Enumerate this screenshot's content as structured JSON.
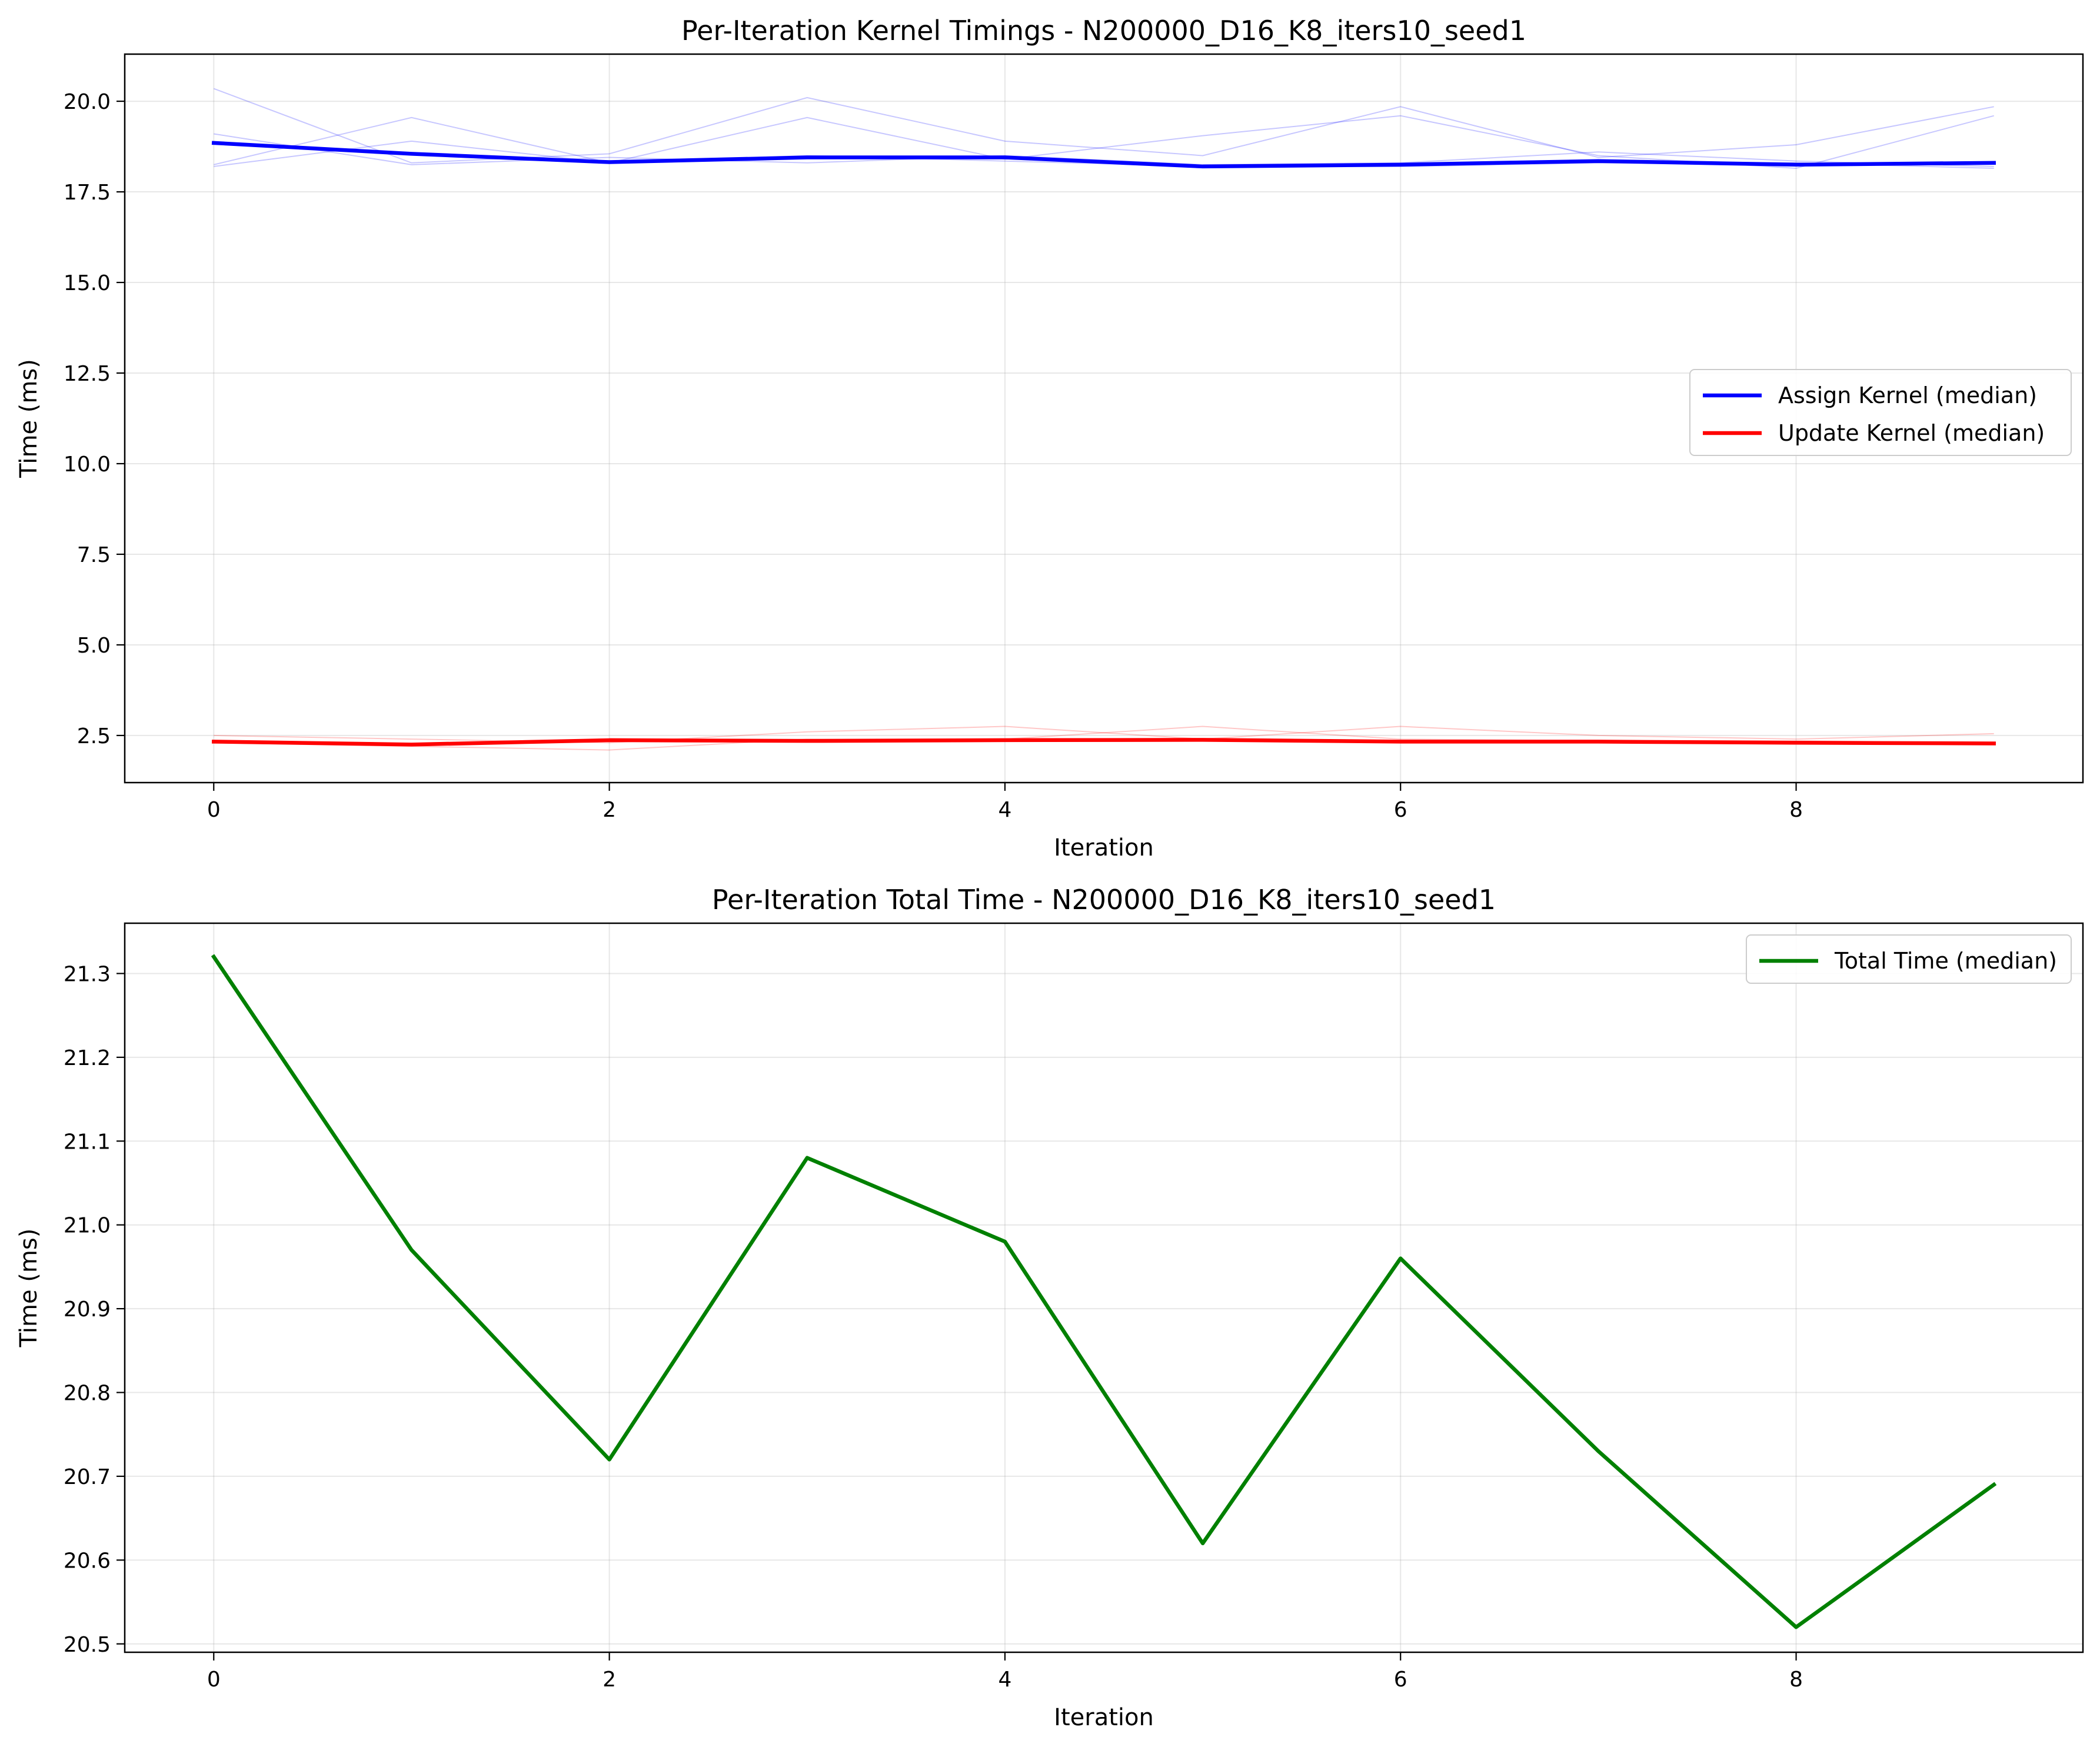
{
  "chart_data": [
    {
      "type": "line",
      "title": "Per-Iteration Kernel Timings - N200000_D16_K8_iters10_seed1",
      "xlabel": "Iteration",
      "ylabel": "Time (ms)",
      "xlim": [
        -0.45,
        9.45
      ],
      "ylim": [
        1.2,
        21.3
      ],
      "xticks": [
        0,
        2,
        4,
        6,
        8
      ],
      "yticks": [
        2.5,
        5.0,
        7.5,
        10.0,
        12.5,
        15.0,
        17.5,
        20.0
      ],
      "grid": true,
      "legend_position": "center-right",
      "x": [
        0,
        1,
        2,
        3,
        4,
        5,
        6,
        7,
        8,
        9
      ],
      "series": [
        {
          "name": "Assign Kernel (median)",
          "color": "#0000ff",
          "values": [
            18.85,
            18.55,
            18.32,
            18.45,
            18.45,
            18.2,
            18.25,
            18.35,
            18.25,
            18.3
          ]
        },
        {
          "name": "Update Kernel (median)",
          "color": "#ff0000",
          "values": [
            2.33,
            2.25,
            2.37,
            2.35,
            2.37,
            2.38,
            2.33,
            2.33,
            2.3,
            2.28
          ]
        }
      ],
      "run_series": [
        {
          "color": "#0000ff",
          "values": [
            20.35,
            18.3,
            18.55,
            20.1,
            18.9,
            18.5,
            19.85,
            18.45,
            18.8,
            19.85
          ]
        },
        {
          "color": "#0000ff",
          "values": [
            18.25,
            19.55,
            18.3,
            19.55,
            18.4,
            19.05,
            19.6,
            18.5,
            18.15,
            19.6
          ]
        },
        {
          "color": "#0000ff",
          "values": [
            19.1,
            18.25,
            18.45,
            18.3,
            18.5,
            18.25,
            18.3,
            18.6,
            18.35,
            18.2
          ]
        },
        {
          "color": "#0000ff",
          "values": [
            18.2,
            18.9,
            18.3,
            18.5,
            18.35,
            18.2,
            18.2,
            18.3,
            18.3,
            18.15
          ]
        },
        {
          "color": "#ff0000",
          "values": [
            2.5,
            2.4,
            2.3,
            2.6,
            2.75,
            2.4,
            2.75,
            2.5,
            2.4,
            2.55
          ]
        },
        {
          "color": "#ff0000",
          "values": [
            2.3,
            2.2,
            2.1,
            2.4,
            2.4,
            2.75,
            2.4,
            2.35,
            2.35,
            2.3
          ]
        }
      ]
    },
    {
      "type": "line",
      "title": "Per-Iteration Total Time - N200000_D16_K8_iters10_seed1",
      "xlabel": "Iteration",
      "ylabel": "Time (ms)",
      "xlim": [
        -0.45,
        9.45
      ],
      "ylim": [
        20.49,
        21.36
      ],
      "xticks": [
        0,
        2,
        4,
        6,
        8
      ],
      "yticks": [
        20.5,
        20.6,
        20.7,
        20.8,
        20.9,
        21.0,
        21.1,
        21.2,
        21.3
      ],
      "grid": true,
      "legend_position": "upper-right",
      "x": [
        0,
        1,
        2,
        3,
        4,
        5,
        6,
        7,
        8,
        9
      ],
      "series": [
        {
          "name": "Total Time (median)",
          "color": "#008000",
          "values": [
            21.32,
            20.97,
            20.72,
            21.08,
            20.98,
            20.62,
            20.96,
            20.73,
            20.52,
            20.69
          ]
        }
      ]
    }
  ]
}
